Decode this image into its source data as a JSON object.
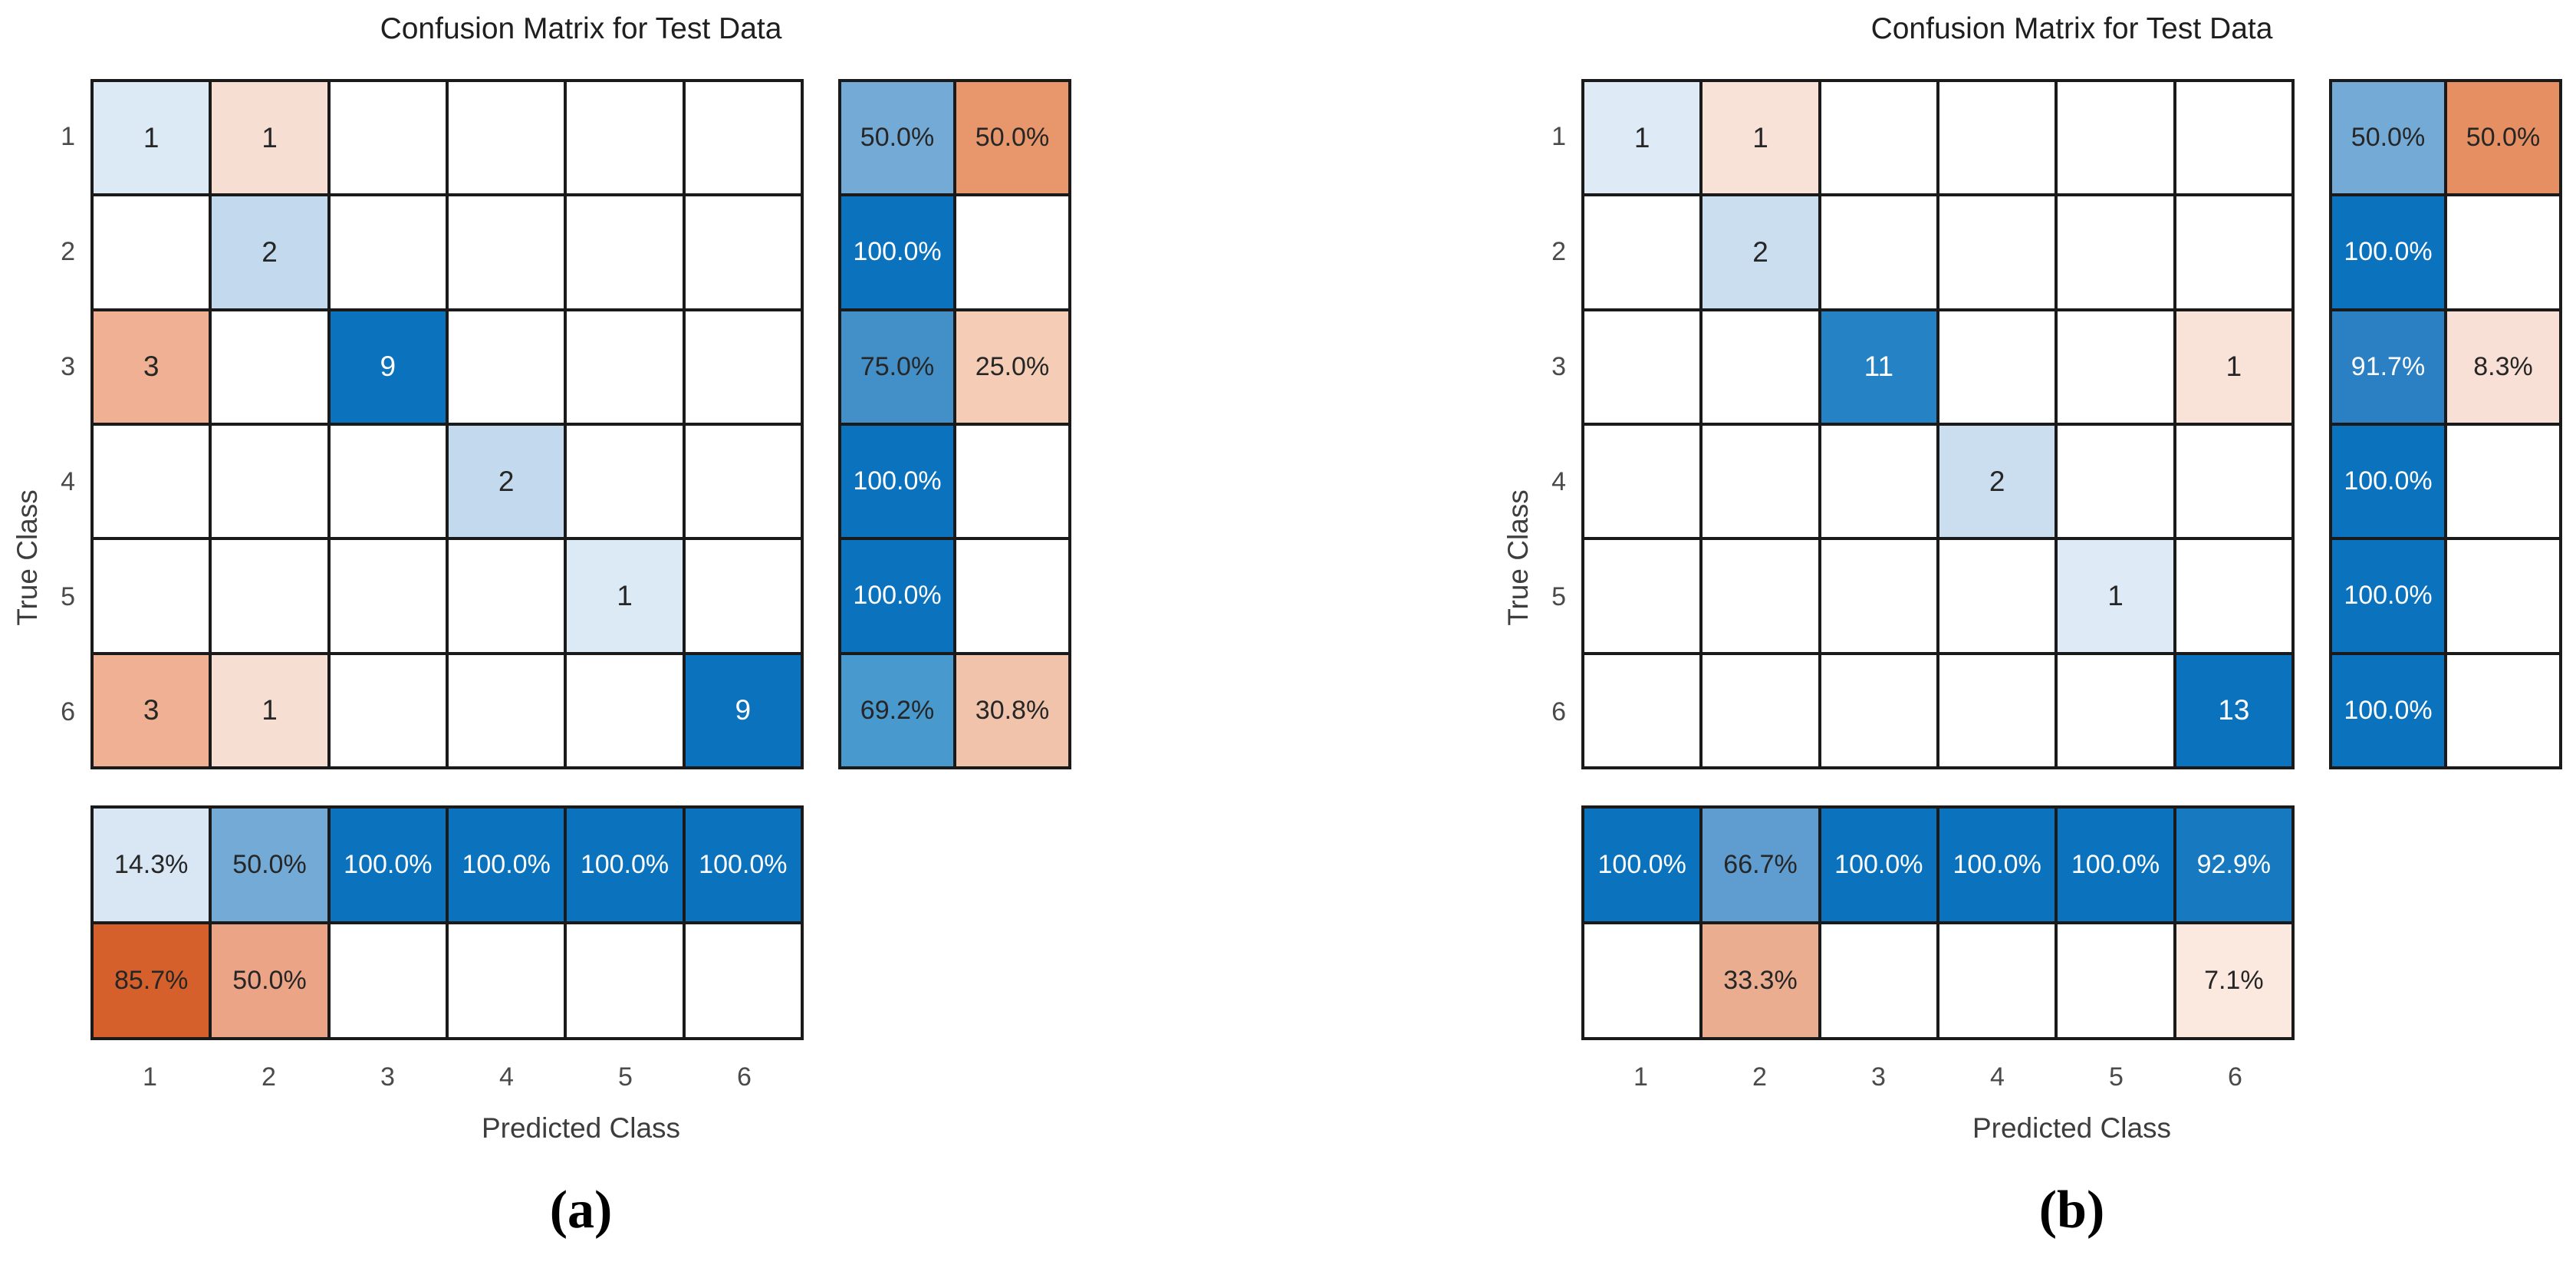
{
  "figure": {
    "background": "#ffffff",
    "colors": {
      "diagonal_blue": "#0B72BD",
      "offdiagonal_orange": "#D6602B",
      "grid_line": "#1a1a1a",
      "dark_text": "#262626",
      "light_text": "#ffffff",
      "tick_text": "#4a4a4a",
      "axis_label_text": "#3d3d3d"
    },
    "charts": [
      {
        "id": "a",
        "caption": "(a)",
        "title": "Confusion Matrix for Test Data",
        "x_label": "Predicted Class",
        "y_label": "True Class",
        "x_ticks": [
          "1",
          "2",
          "3",
          "4",
          "5",
          "6"
        ],
        "y_ticks": [
          "1",
          "2",
          "3",
          "4",
          "5",
          "6"
        ],
        "matrix": [
          [
            {
              "v": "1",
              "bg": "#DCEAF5",
              "fg": "#262626"
            },
            {
              "v": "1",
              "bg": "#F6DED2",
              "fg": "#262626"
            },
            null,
            null,
            null,
            null
          ],
          [
            null,
            {
              "v": "2",
              "bg": "#C3DAEE",
              "fg": "#262626"
            },
            null,
            null,
            null,
            null
          ],
          [
            {
              "v": "3",
              "bg": "#EFB093",
              "fg": "#262626"
            },
            null,
            {
              "v": "9",
              "bg": "#0B72BD",
              "fg": "#ffffff"
            },
            null,
            null,
            null
          ],
          [
            null,
            null,
            null,
            {
              "v": "2",
              "bg": "#C3DAEE",
              "fg": "#262626"
            },
            null,
            null
          ],
          [
            null,
            null,
            null,
            null,
            {
              "v": "1",
              "bg": "#DCEAF5",
              "fg": "#262626"
            },
            null
          ],
          [
            {
              "v": "3",
              "bg": "#EFB093",
              "fg": "#262626"
            },
            {
              "v": "1",
              "bg": "#F6DED2",
              "fg": "#262626"
            },
            null,
            null,
            null,
            {
              "v": "9",
              "bg": "#0B72BD",
              "fg": "#ffffff"
            }
          ]
        ],
        "row_summary": [
          [
            {
              "v": "50.0%",
              "bg": "#74AAD6",
              "fg": "#262626"
            },
            {
              "v": "50.0%",
              "bg": "#E8976C",
              "fg": "#262626"
            }
          ],
          [
            {
              "v": "100.0%",
              "bg": "#0B72BD",
              "fg": "#ffffff"
            },
            null
          ],
          [
            {
              "v": "75.0%",
              "bg": "#4390C8",
              "fg": "#262626"
            },
            {
              "v": "25.0%",
              "bg": "#F5CDB7",
              "fg": "#262626"
            }
          ],
          [
            {
              "v": "100.0%",
              "bg": "#0B72BD",
              "fg": "#ffffff"
            },
            null
          ],
          [
            {
              "v": "100.0%",
              "bg": "#0B72BD",
              "fg": "#ffffff"
            },
            null
          ],
          [
            {
              "v": "69.2%",
              "bg": "#4899CE",
              "fg": "#262626"
            },
            {
              "v": "30.8%",
              "bg": "#F2C3AB",
              "fg": "#262626"
            }
          ]
        ],
        "col_summary": [
          [
            {
              "v": "14.3%",
              "bg": "#D8E7F3",
              "fg": "#262626"
            },
            {
              "v": "50.0%",
              "bg": "#74AAD6",
              "fg": "#262626"
            },
            {
              "v": "100.0%",
              "bg": "#0B72BD",
              "fg": "#ffffff"
            },
            {
              "v": "100.0%",
              "bg": "#0B72BD",
              "fg": "#ffffff"
            },
            {
              "v": "100.0%",
              "bg": "#0B72BD",
              "fg": "#ffffff"
            },
            {
              "v": "100.0%",
              "bg": "#0B72BD",
              "fg": "#ffffff"
            }
          ],
          [
            {
              "v": "85.7%",
              "bg": "#D6602B",
              "fg": "#262626"
            },
            {
              "v": "50.0%",
              "bg": "#ECA486",
              "fg": "#262626"
            },
            null,
            null,
            null,
            null
          ]
        ]
      },
      {
        "id": "b",
        "caption": "(b)",
        "title": "Confusion Matrix for Test Data",
        "x_label": "Predicted Class",
        "y_label": "True Class",
        "x_ticks": [
          "1",
          "2",
          "3",
          "4",
          "5",
          "6"
        ],
        "y_ticks": [
          "1",
          "2",
          "3",
          "4",
          "5",
          "6"
        ],
        "matrix": [
          [
            {
              "v": "1",
              "bg": "#DEEBF6",
              "fg": "#262626"
            },
            {
              "v": "1",
              "bg": "#F8E2D7",
              "fg": "#262626"
            },
            null,
            null,
            null,
            null
          ],
          [
            null,
            {
              "v": "2",
              "bg": "#CADEF0",
              "fg": "#262626"
            },
            null,
            null,
            null,
            null
          ],
          [
            null,
            null,
            {
              "v": "11",
              "bg": "#2583C5",
              "fg": "#ffffff"
            },
            null,
            null,
            {
              "v": "1",
              "bg": "#F9E3D8",
              "fg": "#262626"
            }
          ],
          [
            null,
            null,
            null,
            {
              "v": "2",
              "bg": "#CADEF0",
              "fg": "#262626"
            },
            null,
            null
          ],
          [
            null,
            null,
            null,
            null,
            {
              "v": "1",
              "bg": "#DEEBF6",
              "fg": "#262626"
            },
            null
          ],
          [
            null,
            null,
            null,
            null,
            null,
            {
              "v": "13",
              "bg": "#0B72BD",
              "fg": "#ffffff"
            }
          ]
        ],
        "row_summary": [
          [
            {
              "v": "50.0%",
              "bg": "#74AAD6",
              "fg": "#262626"
            },
            {
              "v": "50.0%",
              "bg": "#E58F63",
              "fg": "#262626"
            }
          ],
          [
            {
              "v": "100.0%",
              "bg": "#0B72BD",
              "fg": "#ffffff"
            },
            null
          ],
          [
            {
              "v": "91.7%",
              "bg": "#2B80C3",
              "fg": "#ffffff"
            },
            {
              "v": "8.3%",
              "bg": "#F8E0D6",
              "fg": "#262626"
            }
          ],
          [
            {
              "v": "100.0%",
              "bg": "#0B72BD",
              "fg": "#ffffff"
            },
            null
          ],
          [
            {
              "v": "100.0%",
              "bg": "#0B72BD",
              "fg": "#ffffff"
            },
            null
          ],
          [
            {
              "v": "100.0%",
              "bg": "#0B72BD",
              "fg": "#ffffff"
            },
            null
          ]
        ],
        "col_summary": [
          [
            {
              "v": "100.0%",
              "bg": "#0B72BD",
              "fg": "#ffffff"
            },
            {
              "v": "66.7%",
              "bg": "#5F9DD1",
              "fg": "#262626"
            },
            {
              "v": "100.0%",
              "bg": "#0B72BD",
              "fg": "#ffffff"
            },
            {
              "v": "100.0%",
              "bg": "#0B72BD",
              "fg": "#ffffff"
            },
            {
              "v": "100.0%",
              "bg": "#0B72BD",
              "fg": "#ffffff"
            },
            {
              "v": "92.9%",
              "bg": "#1779BF",
              "fg": "#ffffff"
            }
          ],
          [
            null,
            {
              "v": "33.3%",
              "bg": "#EBAD90",
              "fg": "#262626"
            },
            null,
            null,
            null,
            {
              "v": "7.1%",
              "bg": "#FBE9DF",
              "fg": "#262626"
            }
          ]
        ]
      }
    ]
  },
  "chart_data": [
    {
      "type": "heatmap",
      "subtype": "confusion-matrix",
      "caption": "(a)",
      "title": "Confusion Matrix for Test Data",
      "xlabel": "Predicted Class",
      "ylabel": "True Class",
      "classes": [
        "1",
        "2",
        "3",
        "4",
        "5",
        "6"
      ],
      "matrix_counts": [
        [
          1,
          1,
          0,
          0,
          0,
          0
        ],
        [
          0,
          2,
          0,
          0,
          0,
          0
        ],
        [
          3,
          0,
          9,
          0,
          0,
          0
        ],
        [
          0,
          0,
          0,
          2,
          0,
          0
        ],
        [
          0,
          0,
          0,
          0,
          1,
          0
        ],
        [
          3,
          1,
          0,
          0,
          0,
          9
        ]
      ],
      "row_summary_pct_correct_incorrect": [
        [
          50.0,
          50.0
        ],
        [
          100.0,
          null
        ],
        [
          75.0,
          25.0
        ],
        [
          100.0,
          null
        ],
        [
          100.0,
          null
        ],
        [
          69.2,
          30.8
        ]
      ],
      "col_summary_pct_correct_incorrect": [
        [
          14.3,
          50.0,
          100.0,
          100.0,
          100.0,
          100.0
        ],
        [
          85.7,
          50.0,
          null,
          null,
          null,
          null
        ]
      ],
      "legend_position": "none",
      "grid": "on"
    },
    {
      "type": "heatmap",
      "subtype": "confusion-matrix",
      "caption": "(b)",
      "title": "Confusion Matrix for Test Data",
      "xlabel": "Predicted Class",
      "ylabel": "True Class",
      "classes": [
        "1",
        "2",
        "3",
        "4",
        "5",
        "6"
      ],
      "matrix_counts": [
        [
          1,
          1,
          0,
          0,
          0,
          0
        ],
        [
          0,
          2,
          0,
          0,
          0,
          0
        ],
        [
          0,
          0,
          11,
          0,
          0,
          1
        ],
        [
          0,
          0,
          0,
          2,
          0,
          0
        ],
        [
          0,
          0,
          0,
          0,
          1,
          0
        ],
        [
          0,
          0,
          0,
          0,
          0,
          13
        ]
      ],
      "row_summary_pct_correct_incorrect": [
        [
          50.0,
          50.0
        ],
        [
          100.0,
          null
        ],
        [
          91.7,
          8.3
        ],
        [
          100.0,
          null
        ],
        [
          100.0,
          null
        ],
        [
          100.0,
          null
        ]
      ],
      "col_summary_pct_correct_incorrect": [
        [
          100.0,
          66.7,
          100.0,
          100.0,
          100.0,
          92.9
        ],
        [
          null,
          33.3,
          null,
          null,
          null,
          7.1
        ]
      ],
      "legend_position": "none",
      "grid": "on"
    }
  ]
}
